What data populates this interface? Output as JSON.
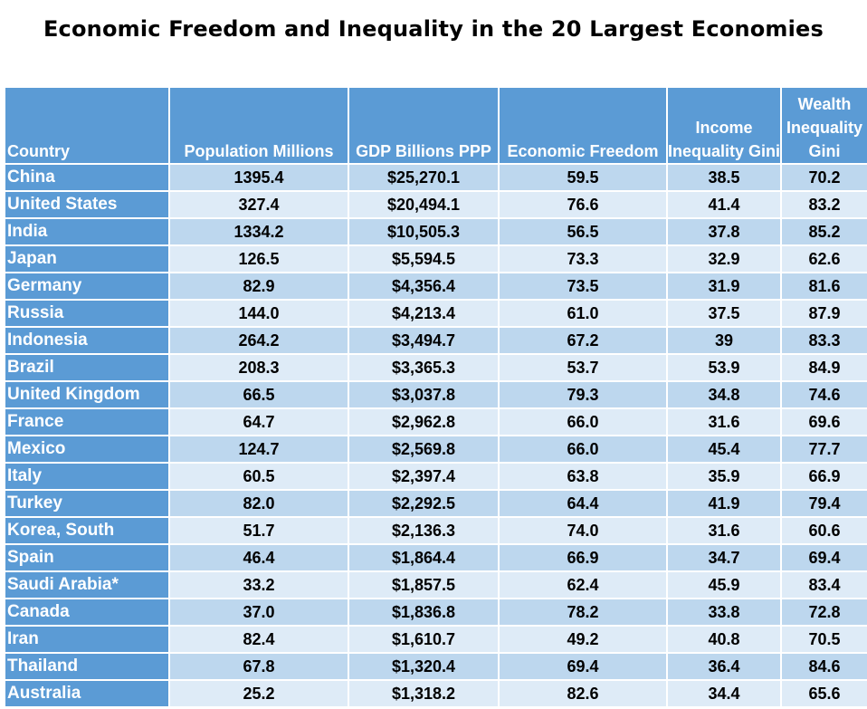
{
  "chart_data": {
    "type": "table",
    "title": "Economic Freedom and Inequality in the 20 Largest Economies",
    "columns": [
      "Country",
      "Population Millions",
      "GDP Billions PPP",
      "Economic Freedom",
      "Income Inequality Gini",
      "Wealth Inequality Gini"
    ],
    "rows": [
      [
        "China",
        "1395.4",
        "$25,270.1",
        "59.5",
        "38.5",
        "70.2"
      ],
      [
        "United States",
        "327.4",
        "$20,494.1",
        "76.6",
        "41.4",
        "83.2"
      ],
      [
        "India",
        "1334.2",
        "$10,505.3",
        "56.5",
        "37.8",
        "85.2"
      ],
      [
        "Japan",
        "126.5",
        "$5,594.5",
        "73.3",
        "32.9",
        "62.6"
      ],
      [
        "Germany",
        "82.9",
        "$4,356.4",
        "73.5",
        "31.9",
        "81.6"
      ],
      [
        "Russia",
        "144.0",
        "$4,213.4",
        "61.0",
        "37.5",
        "87.9"
      ],
      [
        "Indonesia",
        "264.2",
        "$3,494.7",
        "67.2",
        "39",
        "83.3"
      ],
      [
        "Brazil",
        "208.3",
        "$3,365.3",
        "53.7",
        "53.9",
        "84.9"
      ],
      [
        "United Kingdom",
        "66.5",
        "$3,037.8",
        "79.3",
        "34.8",
        "74.6"
      ],
      [
        "France",
        "64.7",
        "$2,962.8",
        "66.0",
        "31.6",
        "69.6"
      ],
      [
        "Mexico",
        "124.7",
        "$2,569.8",
        "66.0",
        "45.4",
        "77.7"
      ],
      [
        "Italy",
        "60.5",
        "$2,397.4",
        "63.8",
        "35.9",
        "66.9"
      ],
      [
        "Turkey",
        "82.0",
        "$2,292.5",
        "64.4",
        "41.9",
        "79.4"
      ],
      [
        "Korea, South",
        "51.7",
        "$2,136.3",
        "74.0",
        "31.6",
        "60.6"
      ],
      [
        "Spain",
        "46.4",
        "$1,864.4",
        "66.9",
        "34.7",
        "69.4"
      ],
      [
        "Saudi Arabia*",
        "33.2",
        "$1,857.5",
        "62.4",
        "45.9",
        "83.4"
      ],
      [
        "Canada",
        "37.0",
        "$1,836.8",
        "78.2",
        "33.8",
        "72.8"
      ],
      [
        "Iran",
        "82.4",
        "$1,610.7",
        "49.2",
        "40.8",
        "70.5"
      ],
      [
        "Thailand",
        "67.8",
        "$1,320.4",
        "69.4",
        "36.4",
        "84.6"
      ],
      [
        "Australia",
        "25.2",
        "$1,318.2",
        "82.6",
        "34.4",
        "65.6"
      ]
    ]
  },
  "colors": {
    "header_fill": "#5b9bd5",
    "row_odd_fill": "#bdd7ee",
    "row_even_fill": "#deebf7",
    "header_text": "#ffffff"
  }
}
